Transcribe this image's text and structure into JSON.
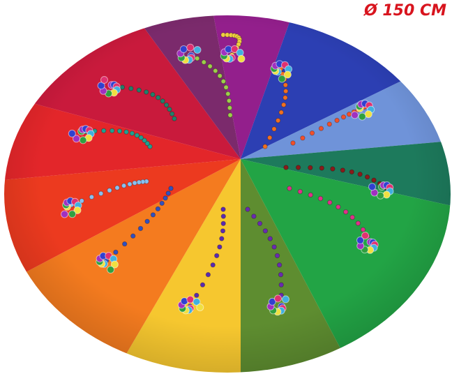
{
  "caption": "Ø 150 CM"
}
